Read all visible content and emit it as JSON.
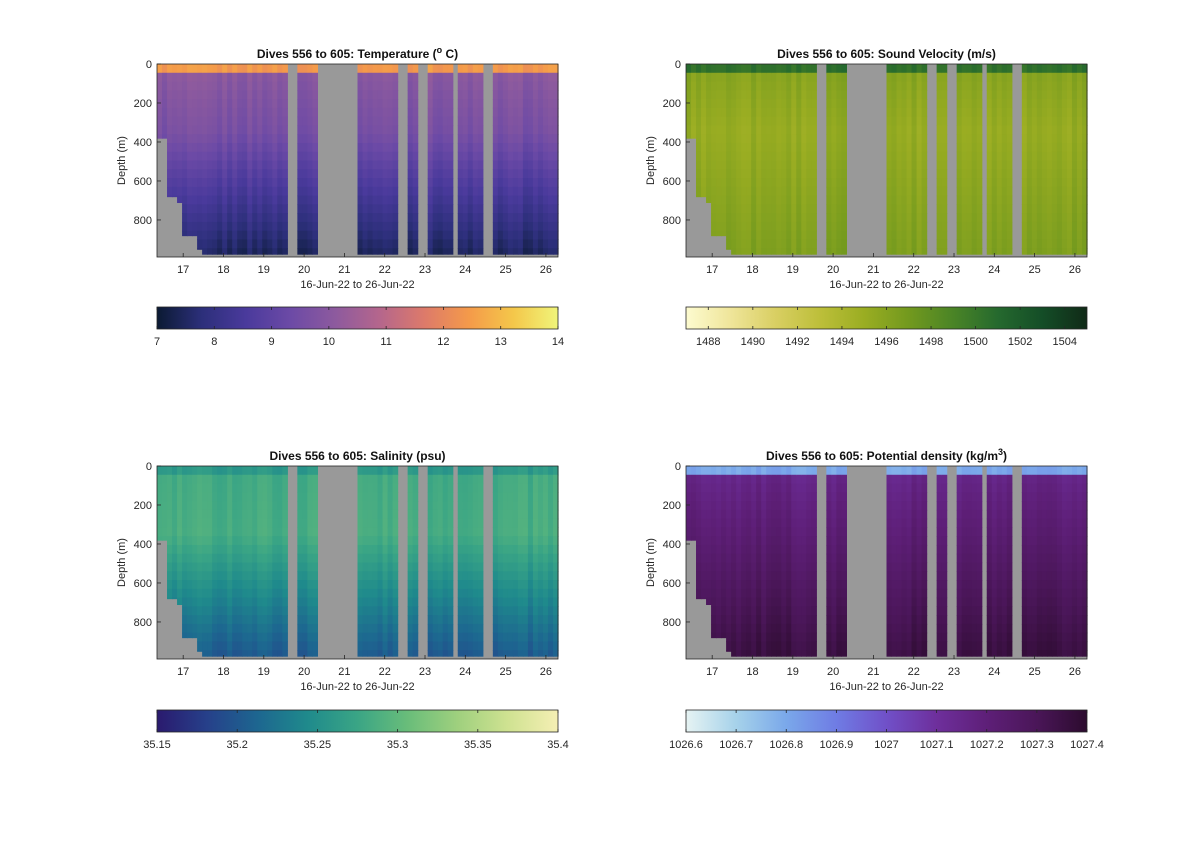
{
  "chart_data": [
    {
      "type": "heatmap",
      "title": "Dives 556 to 605: Temperature (",
      "title_sup": "o",
      "title_suffix": " C)",
      "xlabel": "16-Jun-22 to 26-Jun-22",
      "ylabel": "Depth (m)",
      "x_ticks": [
        "17",
        "18",
        "19",
        "20",
        "21",
        "22",
        "23",
        "24",
        "25",
        "26"
      ],
      "y_ticks": [
        "0",
        "200",
        "400",
        "600",
        "800"
      ],
      "xlim": [
        16.35,
        26.3
      ],
      "ylim": [
        0,
        990
      ],
      "colorbar": {
        "ticks": [
          "7",
          "8",
          "9",
          "10",
          "11",
          "12",
          "13",
          "14"
        ],
        "values": [
          7,
          8,
          9,
          10,
          11,
          12,
          13,
          14
        ],
        "range": [
          7,
          14
        ],
        "colors": [
          "#0b1a33",
          "#2c2f7a",
          "#4a3a9c",
          "#6c4aa6",
          "#8d5a9e",
          "#b5668c",
          "#dd7a6a",
          "#f49a4a",
          "#f4c74a",
          "#f0f57a"
        ]
      },
      "surface_value": 12.4,
      "bottom_value": 7.4
    },
    {
      "type": "heatmap",
      "title": "Dives 556 to 605: Sound Velocity (m/s)",
      "xlabel": "16-Jun-22 to 26-Jun-22",
      "ylabel": "Depth (m)",
      "x_ticks": [
        "17",
        "18",
        "19",
        "20",
        "21",
        "22",
        "23",
        "24",
        "25",
        "26"
      ],
      "y_ticks": [
        "0",
        "200",
        "400",
        "600",
        "800"
      ],
      "xlim": [
        16.35,
        26.3
      ],
      "ylim": [
        0,
        990
      ],
      "colorbar": {
        "ticks": [
          "1488",
          "1490",
          "1492",
          "1494",
          "1496",
          "1498",
          "1500",
          "1502",
          "1504"
        ],
        "values": [
          1488,
          1490,
          1492,
          1494,
          1496,
          1498,
          1500,
          1502,
          1504
        ],
        "range": [
          1487,
          1505
        ],
        "colors": [
          "#fdfbd0",
          "#efe59a",
          "#d9cf63",
          "#bdbf3a",
          "#9aad22",
          "#72991e",
          "#4a8426",
          "#25692e",
          "#144d27",
          "#102a17"
        ]
      },
      "surface_value": 1500.5,
      "bottom_value": 1496.5
    },
    {
      "type": "heatmap",
      "title": "Dives 556 to 605: Salinity (psu)",
      "xlabel": "16-Jun-22 to 26-Jun-22",
      "ylabel": "Depth (m)",
      "x_ticks": [
        "17",
        "18",
        "19",
        "20",
        "21",
        "22",
        "23",
        "24",
        "25",
        "26"
      ],
      "y_ticks": [
        "0",
        "200",
        "400",
        "600",
        "800"
      ],
      "xlim": [
        16.35,
        26.3
      ],
      "ylim": [
        0,
        990
      ],
      "colorbar": {
        "ticks": [
          "35.15",
          "35.2",
          "35.25",
          "35.3",
          "35.35",
          "35.4"
        ],
        "values": [
          35.15,
          35.2,
          35.25,
          35.3,
          35.35,
          35.4
        ],
        "range": [
          35.15,
          35.4
        ],
        "colors": [
          "#2a1a6e",
          "#26408a",
          "#1d6690",
          "#1f8a8c",
          "#3aa585",
          "#69bd7a",
          "#9fd07e",
          "#cfe291",
          "#f5efb4"
        ]
      },
      "surface_value": 35.26,
      "bottom_value": 35.2
    },
    {
      "type": "heatmap",
      "title": "Dives 556 to 605: Potential density (kg/m",
      "title_sup": "3",
      "title_suffix": ")",
      "xlabel": "16-Jun-22 to 26-Jun-22",
      "ylabel": "Depth (m)",
      "x_ticks": [
        "17",
        "18",
        "19",
        "20",
        "21",
        "22",
        "23",
        "24",
        "25",
        "26"
      ],
      "y_ticks": [
        "0",
        "200",
        "400",
        "600",
        "800"
      ],
      "xlim": [
        16.35,
        26.3
      ],
      "ylim": [
        0,
        990
      ],
      "colorbar": {
        "ticks": [
          "1026.6",
          "1026.7",
          "1026.8",
          "1026.9",
          "1027",
          "1027.1",
          "1027.2",
          "1027.3",
          "1027.4"
        ],
        "values": [
          1026.6,
          1026.7,
          1026.8,
          1026.9,
          1027,
          1027.1,
          1027.2,
          1027.3,
          1027.4
        ],
        "range": [
          1026.6,
          1027.4
        ],
        "colors": [
          "#e6f3f3",
          "#a6d2ea",
          "#7aa8ea",
          "#6f7ce4",
          "#7050c8",
          "#6e2f9c",
          "#5e1f78",
          "#4a1658",
          "#2c0b2e"
        ]
      },
      "surface_value": 1026.8,
      "bottom_value": 1027.36
    }
  ],
  "gaps": [
    [
      19.6,
      19.8
    ],
    [
      20.3,
      20.9
    ],
    [
      21.0,
      21.35
    ],
    [
      22.35,
      22.55
    ],
    [
      22.85,
      23.05
    ],
    [
      23.65,
      23.85
    ],
    [
      24.45,
      24.65
    ]
  ],
  "gap_color": "#999999"
}
